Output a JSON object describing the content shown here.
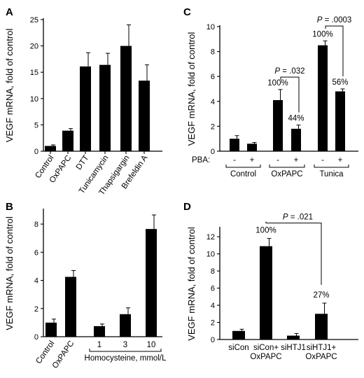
{
  "chart_data": [
    {
      "panel": "A",
      "type": "bar",
      "ylabel": "VEGF mRNA, fold of control",
      "ylim": [
        0,
        25
      ],
      "yticks": [
        0,
        5,
        10,
        15,
        20,
        25
      ],
      "categories": [
        "Control",
        "OxPAPC",
        "DTT",
        "Tunicamycin",
        "Thapsigargin",
        "Brefeldin A"
      ],
      "values": [
        1.0,
        3.9,
        16.1,
        16.4,
        20.0,
        13.4
      ],
      "errors": [
        0.2,
        0.4,
        2.6,
        2.2,
        4.0,
        3.0
      ]
    },
    {
      "panel": "B",
      "type": "bar",
      "ylabel": "VEGF mRNA, fold of control",
      "ylim": [
        0,
        9
      ],
      "yticks": [
        0,
        2,
        4,
        6,
        8
      ],
      "categories": [
        "Control",
        "OxPAPC",
        "1",
        "3",
        "10"
      ],
      "values": [
        1.0,
        4.25,
        0.75,
        1.6,
        7.65
      ],
      "errors": [
        0.25,
        0.45,
        0.15,
        0.45,
        1.0
      ],
      "group_label": "Homocysteine, mmol/L"
    },
    {
      "panel": "C",
      "type": "bar",
      "ylabel": "VEGF mRNA, fold of control",
      "ylim": [
        0,
        10
      ],
      "yticks": [
        0,
        2,
        4,
        6,
        8,
        10
      ],
      "x_row_label": "PBA:",
      "bars": [
        {
          "pba": "-",
          "value": 1.0,
          "error": 0.25
        },
        {
          "pba": "+",
          "value": 0.6,
          "error": 0.1
        },
        {
          "pba": "-",
          "value": 4.1,
          "error": 0.85
        },
        {
          "pba": "+",
          "value": 1.8,
          "error": 0.3
        },
        {
          "pba": "-",
          "value": 8.5,
          "error": 0.35
        },
        {
          "pba": "+",
          "value": 4.8,
          "error": 0.2
        }
      ],
      "groups": [
        "Control",
        "OxPAPC",
        "Tunica"
      ],
      "annotations": [
        {
          "bar": 2,
          "text": "100%"
        },
        {
          "bar": 3,
          "text": "44%"
        },
        {
          "bar": 4,
          "text": "100%"
        },
        {
          "bar": 5,
          "text": "56%"
        }
      ],
      "significance": [
        {
          "from": 2,
          "to": 3,
          "p": "= .032"
        },
        {
          "from": 4,
          "to": 5,
          "p": "= .0003"
        }
      ],
      "p_letter": "P"
    },
    {
      "panel": "D",
      "type": "bar",
      "ylabel": "VEGF mRNA, fold of control",
      "ylim": [
        0,
        13
      ],
      "yticks": [
        0,
        2,
        4,
        6,
        8,
        10,
        12
      ],
      "categories": [
        [
          "siCon"
        ],
        [
          "siCon+",
          "OxPAPC"
        ],
        [
          "siHTJ1"
        ],
        [
          "siHTJ1+",
          "OxPAPC"
        ]
      ],
      "values": [
        1.0,
        10.9,
        0.45,
        3.0
      ],
      "errors": [
        0.2,
        0.9,
        0.25,
        1.25
      ],
      "annotations": [
        {
          "bar": 1,
          "text": "100%"
        },
        {
          "bar": 3,
          "text": "27%"
        }
      ],
      "significance": [
        {
          "from": 1,
          "to": 3,
          "p": "= .021"
        }
      ],
      "p_letter": "P"
    }
  ]
}
